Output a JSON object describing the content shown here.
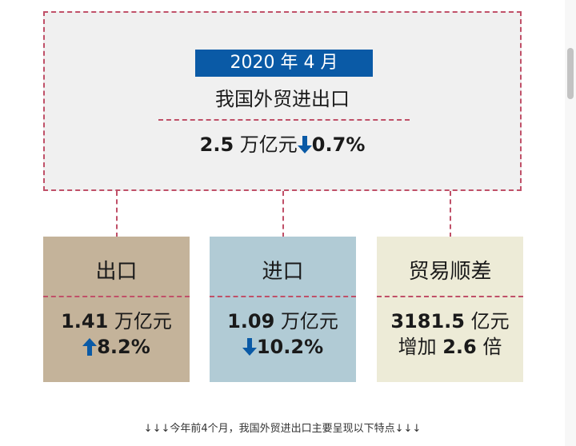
{
  "summary": {
    "date": "2020 年 4 月",
    "title": "我国外贸进出口",
    "value_number": "2.5",
    "value_unit": "万亿元",
    "change": "0.7%",
    "change_direction": "down"
  },
  "cards": [
    {
      "title": "出口",
      "value_number": "1.41",
      "value_unit": "万亿元",
      "change": "8.2%",
      "change_direction": "up",
      "background": "#c4b39a"
    },
    {
      "title": "进口",
      "value_number": "1.09",
      "value_unit": "万亿元",
      "change": "10.2%",
      "change_direction": "down",
      "background": "#b1cbd5"
    },
    {
      "title": "贸易顺差",
      "value_number": "3181.5",
      "value_unit": "亿元",
      "increase_prefix": "增加",
      "increase_number": "2.6",
      "increase_unit": "倍",
      "background": "#edebd7"
    }
  ],
  "footer_note": "↓↓↓今年前4个月，我国外贸进出口主要呈现以下特点↓↓↓",
  "colors": {
    "accent_blue": "#0a5aa6",
    "dashed_border": "#c05068",
    "summary_background": "#f0f0f0"
  },
  "icons": {
    "down": "arrow-down-icon",
    "up": "arrow-up-icon"
  }
}
